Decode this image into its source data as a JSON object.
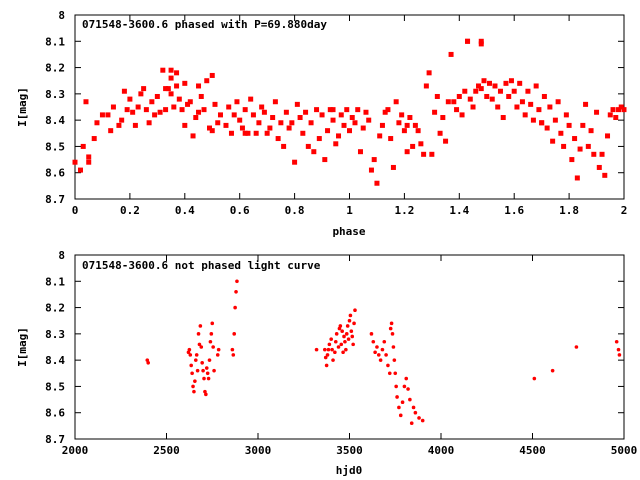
{
  "chart_data": [
    {
      "type": "scatter",
      "title": "071548-3600.6 phased with P=69.880day",
      "xlabel": "phase",
      "ylabel": "I[mag]",
      "xlim": [
        0,
        2
      ],
      "ylim": [
        8.7,
        8
      ],
      "y_inverted": true,
      "grid": false,
      "marker_color": "#ff0000",
      "marker": "square",
      "xticks": [
        "0",
        "0.2",
        "0.4",
        "0.6",
        "0.8",
        "1",
        "1.2",
        "1.4",
        "1.6",
        "1.8",
        "2"
      ],
      "xtick_values": [
        0,
        0.2,
        0.4,
        0.6,
        0.8,
        1.0,
        1.2,
        1.4,
        1.6,
        1.8,
        2.0
      ],
      "yticks": [
        "8",
        "8.1",
        "8.2",
        "8.3",
        "8.4",
        "8.5",
        "8.6",
        "8.7"
      ],
      "ytick_values": [
        8.0,
        8.1,
        8.2,
        8.3,
        8.4,
        8.5,
        8.6,
        8.7
      ],
      "points": [
        [
          0.0,
          8.56
        ],
        [
          0.02,
          8.59
        ],
        [
          0.03,
          8.5
        ],
        [
          0.04,
          8.33
        ],
        [
          0.05,
          8.56
        ],
        [
          0.05,
          8.54
        ],
        [
          0.07,
          8.47
        ],
        [
          0.08,
          8.41
        ],
        [
          0.1,
          8.38
        ],
        [
          0.12,
          8.38
        ],
        [
          0.13,
          8.44
        ],
        [
          0.14,
          8.35
        ],
        [
          0.16,
          8.42
        ],
        [
          0.17,
          8.4
        ],
        [
          0.18,
          8.29
        ],
        [
          0.19,
          8.36
        ],
        [
          0.2,
          8.32
        ],
        [
          0.21,
          8.37
        ],
        [
          0.22,
          8.42
        ],
        [
          0.23,
          8.35
        ],
        [
          0.24,
          8.3
        ],
        [
          0.25,
          8.28
        ],
        [
          0.26,
          8.36
        ],
        [
          0.27,
          8.41
        ],
        [
          0.28,
          8.33
        ],
        [
          0.29,
          8.38
        ],
        [
          0.3,
          8.31
        ],
        [
          0.31,
          8.37
        ],
        [
          0.32,
          8.21
        ],
        [
          0.33,
          8.36
        ],
        [
          0.34,
          8.28
        ],
        [
          0.35,
          8.24
        ],
        [
          0.35,
          8.3
        ],
        [
          0.36,
          8.35
        ],
        [
          0.37,
          8.27
        ],
        [
          0.37,
          8.22
        ],
        [
          0.38,
          8.32
        ],
        [
          0.39,
          8.36
        ],
        [
          0.4,
          8.26
        ],
        [
          0.4,
          8.42
        ],
        [
          0.41,
          8.34
        ],
        [
          0.42,
          8.33
        ],
        [
          0.43,
          8.46
        ],
        [
          0.44,
          8.39
        ],
        [
          0.45,
          8.27
        ],
        [
          0.46,
          8.31
        ],
        [
          0.47,
          8.36
        ],
        [
          0.48,
          8.25
        ],
        [
          0.49,
          8.43
        ],
        [
          0.5,
          8.23
        ],
        [
          0.5,
          8.44
        ],
        [
          0.51,
          8.34
        ],
        [
          0.52,
          8.41
        ],
        [
          0.53,
          8.38
        ],
        [
          0.55,
          8.42
        ],
        [
          0.56,
          8.35
        ],
        [
          0.57,
          8.45
        ],
        [
          0.58,
          8.38
        ],
        [
          0.59,
          8.33
        ],
        [
          0.6,
          8.4
        ],
        [
          0.61,
          8.43
        ],
        [
          0.62,
          8.36
        ],
        [
          0.63,
          8.45
        ],
        [
          0.64,
          8.32
        ],
        [
          0.65,
          8.38
        ],
        [
          0.66,
          8.45
        ],
        [
          0.67,
          8.41
        ],
        [
          0.68,
          8.35
        ],
        [
          0.69,
          8.37
        ],
        [
          0.7,
          8.45
        ],
        [
          0.71,
          8.43
        ],
        [
          0.72,
          8.39
        ],
        [
          0.73,
          8.33
        ],
        [
          0.74,
          8.47
        ],
        [
          0.75,
          8.41
        ],
        [
          0.76,
          8.5
        ],
        [
          0.77,
          8.37
        ],
        [
          0.78,
          8.43
        ],
        [
          0.79,
          8.41
        ],
        [
          0.8,
          8.56
        ],
        [
          0.81,
          8.34
        ],
        [
          0.82,
          8.39
        ],
        [
          0.83,
          8.45
        ],
        [
          0.84,
          8.37
        ],
        [
          0.85,
          8.5
        ],
        [
          0.86,
          8.41
        ],
        [
          0.87,
          8.52
        ],
        [
          0.88,
          8.36
        ],
        [
          0.89,
          8.47
        ],
        [
          0.9,
          8.38
        ],
        [
          0.91,
          8.55
        ],
        [
          0.92,
          8.44
        ],
        [
          0.93,
          8.36
        ],
        [
          0.94,
          8.4
        ],
        [
          0.95,
          8.49
        ],
        [
          0.96,
          8.46
        ],
        [
          0.97,
          8.38
        ],
        [
          0.98,
          8.42
        ],
        [
          0.99,
          8.36
        ],
        [
          1.0,
          8.44
        ],
        [
          1.01,
          8.39
        ],
        [
          1.02,
          8.41
        ],
        [
          1.03,
          8.36
        ],
        [
          1.04,
          8.52
        ],
        [
          1.05,
          8.43
        ],
        [
          1.06,
          8.37
        ],
        [
          1.07,
          8.4
        ],
        [
          1.08,
          8.59
        ],
        [
          1.09,
          8.55
        ],
        [
          1.1,
          8.64
        ],
        [
          1.11,
          8.46
        ],
        [
          1.12,
          8.42
        ],
        [
          1.13,
          8.37
        ],
        [
          1.14,
          8.36
        ],
        [
          1.15,
          8.47
        ],
        [
          1.16,
          8.58
        ],
        [
          1.17,
          8.33
        ],
        [
          1.18,
          8.41
        ],
        [
          1.19,
          8.38
        ],
        [
          1.2,
          8.44
        ],
        [
          1.21,
          8.52
        ],
        [
          1.22,
          8.39
        ],
        [
          1.23,
          8.5
        ],
        [
          1.24,
          8.42
        ],
        [
          1.25,
          8.44
        ],
        [
          1.26,
          8.49
        ],
        [
          1.27,
          8.53
        ],
        [
          1.28,
          8.27
        ],
        [
          1.29,
          8.22
        ],
        [
          1.3,
          8.53
        ],
        [
          1.31,
          8.37
        ],
        [
          1.32,
          8.31
        ],
        [
          1.33,
          8.45
        ],
        [
          1.34,
          8.39
        ],
        [
          1.35,
          8.48
        ],
        [
          1.36,
          8.33
        ],
        [
          1.37,
          8.15
        ],
        [
          1.38,
          8.33
        ],
        [
          1.39,
          8.36
        ],
        [
          1.4,
          8.31
        ],
        [
          1.41,
          8.38
        ],
        [
          1.42,
          8.29
        ],
        [
          1.43,
          8.1
        ],
        [
          1.44,
          8.32
        ],
        [
          1.45,
          8.35
        ],
        [
          1.46,
          8.29
        ],
        [
          1.47,
          8.27
        ],
        [
          1.48,
          8.28
        ],
        [
          1.49,
          8.25
        ],
        [
          1.5,
          8.31
        ],
        [
          1.51,
          8.26
        ],
        [
          1.52,
          8.32
        ],
        [
          1.53,
          8.27
        ],
        [
          1.54,
          8.35
        ],
        [
          1.55,
          8.29
        ],
        [
          1.56,
          8.39
        ],
        [
          1.57,
          8.26
        ],
        [
          1.58,
          8.31
        ],
        [
          1.59,
          8.25
        ],
        [
          1.6,
          8.29
        ],
        [
          1.61,
          8.35
        ],
        [
          1.62,
          8.26
        ],
        [
          1.63,
          8.33
        ],
        [
          1.64,
          8.38
        ],
        [
          1.65,
          8.29
        ],
        [
          1.66,
          8.34
        ],
        [
          1.67,
          8.4
        ],
        [
          1.68,
          8.27
        ],
        [
          1.69,
          8.36
        ],
        [
          1.7,
          8.41
        ],
        [
          1.71,
          8.31
        ],
        [
          1.72,
          8.43
        ],
        [
          1.73,
          8.35
        ],
        [
          1.74,
          8.48
        ],
        [
          1.75,
          8.4
        ],
        [
          1.76,
          8.33
        ],
        [
          1.77,
          8.45
        ],
        [
          1.78,
          8.5
        ],
        [
          1.79,
          8.38
        ],
        [
          1.8,
          8.42
        ],
        [
          1.81,
          8.55
        ],
        [
          1.82,
          8.47
        ],
        [
          1.83,
          8.62
        ],
        [
          1.84,
          8.51
        ],
        [
          1.85,
          8.42
        ],
        [
          1.86,
          8.34
        ],
        [
          1.87,
          8.5
        ],
        [
          1.88,
          8.44
        ],
        [
          1.89,
          8.53
        ],
        [
          1.9,
          8.37
        ],
        [
          1.91,
          8.58
        ],
        [
          1.92,
          8.53
        ],
        [
          1.93,
          8.61
        ],
        [
          1.94,
          8.46
        ],
        [
          1.95,
          8.38
        ],
        [
          1.96,
          8.36
        ],
        [
          1.97,
          8.39
        ],
        [
          1.98,
          8.36
        ],
        [
          1.99,
          8.35
        ],
        [
          2.0,
          8.36
        ],
        [
          1.43,
          8.1
        ],
        [
          1.48,
          8.1
        ],
        [
          1.48,
          8.11
        ],
        [
          0.35,
          8.21
        ],
        [
          0.33,
          8.28
        ],
        [
          0.45,
          8.37
        ],
        [
          0.94,
          8.36
        ],
        [
          0.62,
          8.45
        ],
        [
          1.21,
          8.42
        ],
        [
          1.7,
          8.41
        ]
      ]
    },
    {
      "type": "scatter",
      "title": "071548-3600.6 not phased light curve",
      "xlabel": "hjd0",
      "ylabel": "I[mag]",
      "xlim": [
        2000,
        5000
      ],
      "ylim": [
        8.7,
        8
      ],
      "y_inverted": true,
      "grid": false,
      "marker_color": "#ff0000",
      "marker": "small-dot",
      "xticks": [
        "2000",
        "2500",
        "3000",
        "3500",
        "4000",
        "4500",
        "5000"
      ],
      "xtick_values": [
        2000,
        2500,
        3000,
        3500,
        4000,
        4500,
        5000
      ],
      "yticks": [
        "8",
        "8.1",
        "8.2",
        "8.3",
        "8.4",
        "8.5",
        "8.6",
        "8.7"
      ],
      "ytick_values": [
        8.0,
        8.1,
        8.2,
        8.3,
        8.4,
        8.5,
        8.6,
        8.7
      ],
      "points": [
        [
          2395,
          8.4
        ],
        [
          2400,
          8.41
        ],
        [
          2620,
          8.37
        ],
        [
          2625,
          8.36
        ],
        [
          2630,
          8.38
        ],
        [
          2635,
          8.42
        ],
        [
          2640,
          8.45
        ],
        [
          2645,
          8.5
        ],
        [
          2650,
          8.52
        ],
        [
          2655,
          8.48
        ],
        [
          2660,
          8.4
        ],
        [
          2665,
          8.38
        ],
        [
          2670,
          8.44
        ],
        [
          2675,
          8.3
        ],
        [
          2680,
          8.34
        ],
        [
          2685,
          8.27
        ],
        [
          2690,
          8.35
        ],
        [
          2695,
          8.41
        ],
        [
          2700,
          8.44
        ],
        [
          2705,
          8.47
        ],
        [
          2710,
          8.52
        ],
        [
          2715,
          8.53
        ],
        [
          2720,
          8.43
        ],
        [
          2725,
          8.45
        ],
        [
          2730,
          8.47
        ],
        [
          2735,
          8.4
        ],
        [
          2740,
          8.33
        ],
        [
          2745,
          8.3
        ],
        [
          2750,
          8.26
        ],
        [
          2755,
          8.35
        ],
        [
          2760,
          8.44
        ],
        [
          2780,
          8.38
        ],
        [
          2785,
          8.36
        ],
        [
          2860,
          8.36
        ],
        [
          2865,
          8.38
        ],
        [
          2870,
          8.3
        ],
        [
          2875,
          8.2
        ],
        [
          2880,
          8.14
        ],
        [
          2885,
          8.1
        ],
        [
          3320,
          8.36
        ],
        [
          3365,
          8.36
        ],
        [
          3370,
          8.39
        ],
        [
          3375,
          8.42
        ],
        [
          3380,
          8.38
        ],
        [
          3385,
          8.36
        ],
        [
          3390,
          8.34
        ],
        [
          3400,
          8.32
        ],
        [
          3405,
          8.36
        ],
        [
          3410,
          8.4
        ],
        [
          3420,
          8.37
        ],
        [
          3425,
          8.33
        ],
        [
          3430,
          8.3
        ],
        [
          3440,
          8.35
        ],
        [
          3445,
          8.28
        ],
        [
          3450,
          8.27
        ],
        [
          3455,
          8.34
        ],
        [
          3460,
          8.29
        ],
        [
          3465,
          8.37
        ],
        [
          3470,
          8.31
        ],
        [
          3475,
          8.33
        ],
        [
          3480,
          8.36
        ],
        [
          3485,
          8.3
        ],
        [
          3490,
          8.27
        ],
        [
          3495,
          8.32
        ],
        [
          3500,
          8.25
        ],
        [
          3505,
          8.23
        ],
        [
          3510,
          8.29
        ],
        [
          3515,
          8.31
        ],
        [
          3520,
          8.34
        ],
        [
          3525,
          8.26
        ],
        [
          3530,
          8.21
        ],
        [
          3620,
          8.3
        ],
        [
          3630,
          8.33
        ],
        [
          3640,
          8.37
        ],
        [
          3650,
          8.35
        ],
        [
          3660,
          8.38
        ],
        [
          3670,
          8.4
        ],
        [
          3680,
          8.36
        ],
        [
          3690,
          8.33
        ],
        [
          3700,
          8.38
        ],
        [
          3710,
          8.42
        ],
        [
          3720,
          8.45
        ],
        [
          3725,
          8.28
        ],
        [
          3730,
          8.26
        ],
        [
          3735,
          8.3
        ],
        [
          3740,
          8.35
        ],
        [
          3745,
          8.4
        ],
        [
          3750,
          8.45
        ],
        [
          3755,
          8.5
        ],
        [
          3760,
          8.54
        ],
        [
          3770,
          8.58
        ],
        [
          3780,
          8.61
        ],
        [
          3790,
          8.56
        ],
        [
          3800,
          8.5
        ],
        [
          3810,
          8.47
        ],
        [
          3820,
          8.51
        ],
        [
          3830,
          8.55
        ],
        [
          3840,
          8.64
        ],
        [
          3850,
          8.58
        ],
        [
          3860,
          8.6
        ],
        [
          3880,
          8.62
        ],
        [
          3900,
          8.63
        ],
        [
          4510,
          8.47
        ],
        [
          4610,
          8.44
        ],
        [
          4740,
          8.35
        ],
        [
          4960,
          8.33
        ],
        [
          4970,
          8.36
        ],
        [
          4975,
          8.38
        ]
      ]
    }
  ]
}
